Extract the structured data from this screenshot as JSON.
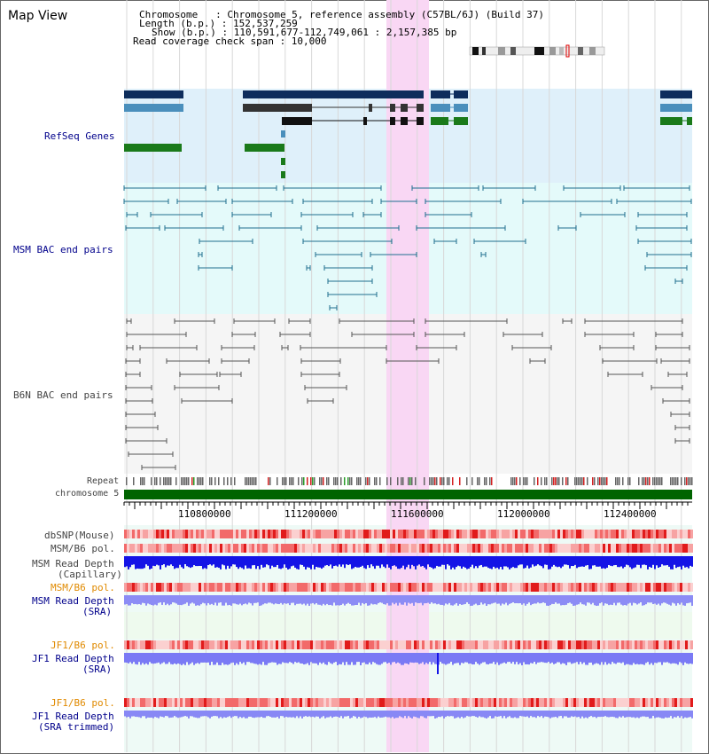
{
  "view": {
    "title": "Map View"
  },
  "info": {
    "chromosome": "Chromosome   : Chromosome 5, reference assembly (C57BL/6J) (Build 37)",
    "length": "Length (b.p.) : 152,537,259",
    "show": "Show (b.p.) : 110,591,677-112,749,061 : 2,157,385 bp",
    "read_span": "Read coverage check span : 10,000"
  },
  "tracks": {
    "refseq": "RefSeq Genes",
    "msm_bac": "MSM BAC end pairs",
    "b6n_bac": "B6N BAC end pairs",
    "repeat": "Repeat",
    "chromosome": "chromosome 5",
    "dbsnp": "dbSNP(Mouse)",
    "msm_b6_pol_1": "MSM/B6 pol.",
    "msm_depth_cap_1": "MSM Read Depth",
    "msm_depth_cap_2": "(Capillary)",
    "msm_b6_pol_2": "MSM/B6 pol.",
    "msm_depth_sra_1": "MSM Read Depth",
    "msm_depth_sra_2": "(SRA)",
    "jf1_b6_pol_1": "JF1/B6 pol.",
    "jf1_depth_sra_1": "JF1 Read Depth",
    "jf1_depth_sra_2": "(SRA)",
    "jf1_b6_pol_2": "JF1/B6 pol.",
    "jf1_depth_trim_1": "JF1 Read Depth",
    "jf1_depth_trim_2": "(SRA trimmed)"
  },
  "axis": {
    "ticks": [
      "110800000",
      "111200000",
      "111600000",
      "112000000",
      "112400000"
    ]
  },
  "colors": {
    "refseq_bg": "#dff0fa",
    "msm_bg": "#e4fafa",
    "b6n_bg": "#f5f5f5",
    "highlight": "#f9d7f4",
    "gene_dark": "#0e2d5c",
    "gene_mid": "#4a8fbc",
    "gene_green": "#1a7a1a",
    "chromosome_bar": "#006400",
    "depth_blue": "#1414e6",
    "depth_light": "#7a7af5"
  }
}
